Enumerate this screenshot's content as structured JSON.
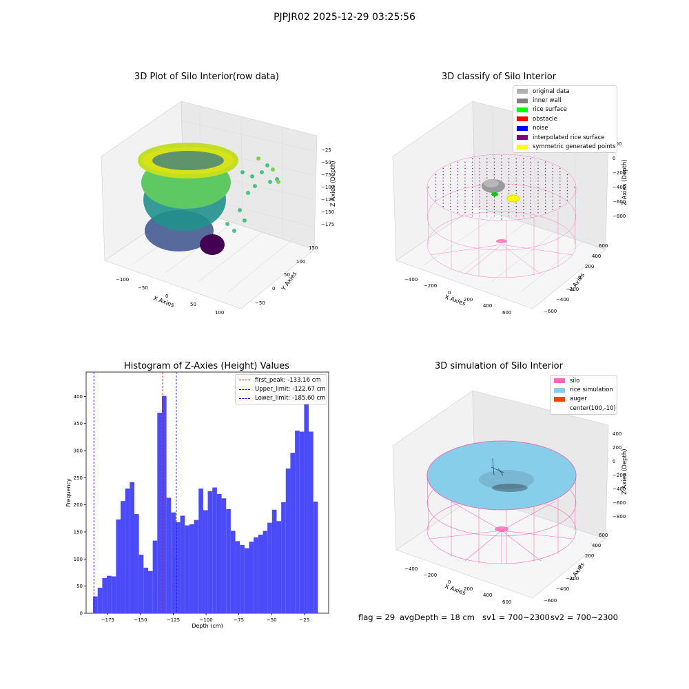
{
  "suptitle": "PJPJR02 2025-12-29 03:25:56",
  "plots": {
    "raw": {
      "title": "3D Plot of Silo Interior(row data)",
      "xlabel": "X Axies",
      "ylabel": "Y Axies",
      "zlabel": "Z Axies (Depth)",
      "xticks": [
        "−100",
        "−50",
        "0",
        "50",
        "100"
      ],
      "yticks": [
        "−50",
        "0",
        "50",
        "100",
        "150"
      ],
      "zticks": [
        "−25",
        "−50",
        "−75",
        "−100",
        "−125",
        "−150",
        "−175"
      ]
    },
    "classify": {
      "title": "3D classify of Silo Interior",
      "xlabel": "X Axies",
      "ylabel": "Y Axies",
      "zlabel": "Z Axies (Depth)",
      "xticks": [
        "−400",
        "−200",
        "0",
        "200",
        "400",
        "600"
      ],
      "yticks": [
        "−600",
        "−400",
        "−200",
        "0",
        "200",
        "400",
        "600"
      ],
      "zticks": [
        "200",
        "0",
        "−200",
        "−400",
        "−600",
        "−800"
      ],
      "legend": [
        {
          "label": "original data",
          "color": "#b0b0b0"
        },
        {
          "label": "inner wall",
          "color": "#808080"
        },
        {
          "label": "rice surface",
          "color": "#00ff00"
        },
        {
          "label": "obstacle",
          "color": "#ff0000"
        },
        {
          "label": "noise",
          "color": "#0000ff"
        },
        {
          "label": "interpolated rice surface",
          "color": "#800080"
        },
        {
          "label": "symmetric generated points",
          "color": "#ffff00"
        }
      ]
    },
    "sim": {
      "title": "3D simulation of Silo Interior",
      "xlabel": "X Axies",
      "ylabel": "Y Axies",
      "zlabel": "Z Axies (Depth)",
      "xticks": [
        "−400",
        "−200",
        "0",
        "200",
        "400",
        "600"
      ],
      "yticks": [
        "−600",
        "−400",
        "−200",
        "0",
        "200",
        "400",
        "600"
      ],
      "zticks": [
        "400",
        "200",
        "0",
        "−200",
        "−400",
        "−600",
        "−800"
      ],
      "legend": [
        {
          "label": "silo",
          "color": "#ff69b4"
        },
        {
          "label": "rice simulation",
          "color": "#87ceeb"
        },
        {
          "label": "auger",
          "color": "#ff4500"
        },
        {
          "label": "center(100,-10)",
          "color": ""
        }
      ]
    }
  },
  "footer": {
    "flag": "flag = 29",
    "avg": "avgDepth = 18 cm",
    "sv1": "sv1 = 700~2300",
    "sv2": "sv2 = 700~2300"
  },
  "chart_data": {
    "type": "bar",
    "title": "Histogram of Z-Axies (Height) Values",
    "xlabel": "Depth (cm)",
    "ylabel": "Frequency",
    "xlim": [
      -191.5,
      -6.5
    ],
    "ylim": [
      0,
      445
    ],
    "xticks": [
      -175,
      -150,
      -125,
      -100,
      -75,
      -50,
      -25
    ],
    "xticklabels": [
      "−175",
      "−150",
      "−125",
      "−100",
      "−75",
      "−50",
      "−25"
    ],
    "yticks": [
      0,
      50,
      100,
      150,
      200,
      250,
      300,
      350,
      400
    ],
    "bar_color": "#4b4bfa",
    "bin_start": -186.2,
    "bin_width": 3.5,
    "values": [
      31,
      47,
      65,
      69,
      68,
      173,
      207,
      230,
      242,
      183,
      108,
      84,
      78,
      134,
      370,
      401,
      213,
      186,
      168,
      180,
      162,
      164,
      172,
      230,
      190,
      225,
      232,
      220,
      212,
      192,
      152,
      133,
      126,
      120,
      132,
      140,
      145,
      152,
      167,
      191,
      170,
      205,
      267,
      296,
      337,
      335,
      424,
      335,
      206
    ],
    "vlines": [
      {
        "label": "first_peak: -133.16 cm",
        "x": -133.16,
        "color": "#ff0000"
      },
      {
        "label": "Upper_limit: -122.67 cm",
        "x": -122.67,
        "color": "#0000ff"
      },
      {
        "label": "Lower_limit: -185.60 cm",
        "x": -185.6,
        "color": "#0000ff"
      }
    ],
    "legend_position": "top-right"
  }
}
